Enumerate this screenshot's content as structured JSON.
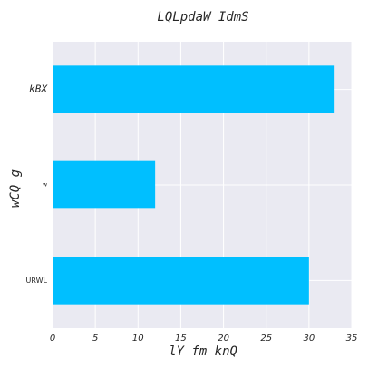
{
  "chart_data": {
    "type": "bar",
    "orientation": "horizontal",
    "title": "LQLpdaW IdmS",
    "xlabel": "lY fm knQ",
    "ylabel": "wCQ g",
    "categories": [
      "kBX",
      "w",
      "URWL"
    ],
    "values": [
      33,
      12,
      30
    ],
    "xlim": [
      0,
      35
    ],
    "xticks": [
      0,
      5,
      10,
      15,
      20,
      25,
      30,
      35
    ],
    "grid": true,
    "colors": {
      "bar": "#00bfff",
      "background": "#eaeaf2",
      "grid": "#ffffff"
    }
  }
}
